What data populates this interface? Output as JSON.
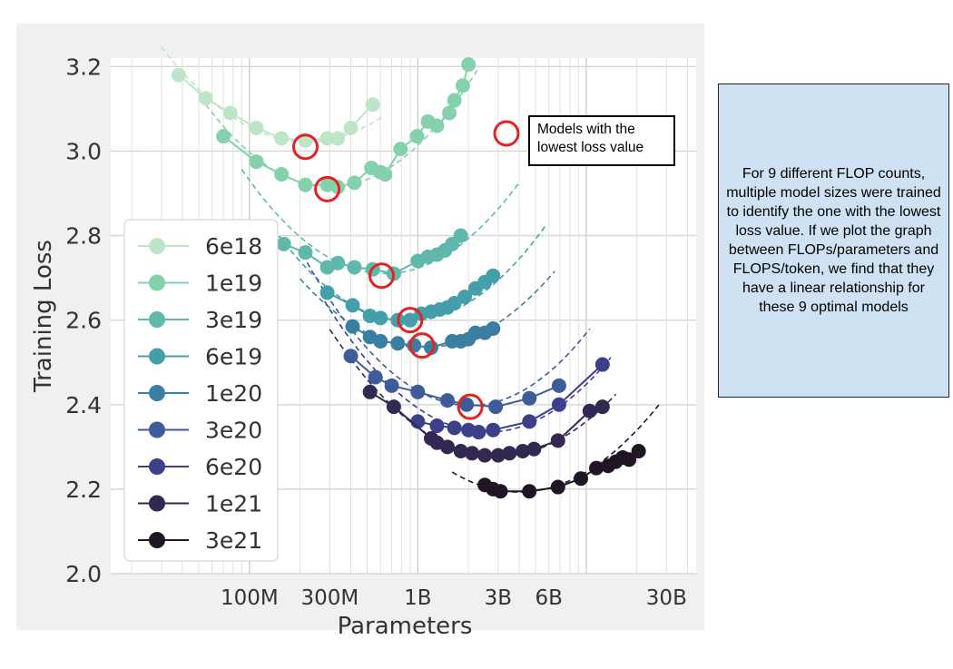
{
  "chart_data": {
    "type": "line",
    "xscale": "log",
    "xlabel": "Parameters",
    "ylabel": "Training Loss",
    "xlim": [
      15000000,
      45000000000
    ],
    "ylim": [
      2.0,
      3.22
    ],
    "xtick_labels": [
      {
        "value": 100000000,
        "label": "100M"
      },
      {
        "value": 300000000,
        "label": "300M"
      },
      {
        "value": 1000000000,
        "label": "1B"
      },
      {
        "value": 3000000000,
        "label": "3B"
      },
      {
        "value": 6000000000,
        "label": "6B"
      },
      {
        "value": 30000000000,
        "label": "30B"
      }
    ],
    "yticks": [
      2.0,
      2.2,
      2.4,
      2.6,
      2.8,
      3.0,
      3.2
    ],
    "grid": true,
    "legend_position": "left",
    "series": [
      {
        "name": "6e18",
        "color": "#bfe5c9",
        "x": [
          38000000,
          55000000,
          77000000,
          110000000,
          155000000,
          215000000,
          290000000,
          335000000,
          400000000,
          540000000
        ],
        "y": [
          3.18,
          3.125,
          3.09,
          3.055,
          3.03,
          3.025,
          3.03,
          3.03,
          3.055,
          3.11
        ],
        "fit": {
          "a": 3.022,
          "b": 0.3,
          "x0": 220000000,
          "x_start": 30000000,
          "x_end": 620000000
        }
      },
      {
        "name": "1e19",
        "color": "#86d1ad",
        "x": [
          70000000,
          110000000,
          155000000,
          215000000,
          290000000,
          335000000,
          420000000,
          530000000,
          600000000,
          640000000,
          790000000,
          990000000,
          1150000000,
          1300000000,
          1540000000,
          1650000000,
          1850000000,
          2000000000
        ],
        "y": [
          3.035,
          2.975,
          2.945,
          2.92,
          2.92,
          2.915,
          2.925,
          2.96,
          2.95,
          2.945,
          3.005,
          3.035,
          3.07,
          3.06,
          3.09,
          3.12,
          3.155,
          3.205
        ],
        "fit": {
          "a": 2.915,
          "b": 0.36,
          "x0": 300000000,
          "x_start": 55000000,
          "x_end": 2300000000
        }
      },
      {
        "name": "3e19",
        "color": "#60b8ac",
        "x": [
          160000000,
          215000000,
          290000000,
          335000000,
          420000000,
          540000000,
          720000000,
          1000000000,
          1150000000,
          1300000000,
          1450000000,
          1600000000,
          1800000000
        ],
        "y": [
          2.78,
          2.76,
          2.725,
          2.735,
          2.725,
          2.72,
          2.71,
          2.74,
          2.75,
          2.755,
          2.765,
          2.78,
          2.8
        ],
        "fit": {
          "a": 2.71,
          "b": 0.34,
          "x0": 640000000,
          "x_start": 90000000,
          "x_end": 4000000000
        }
      },
      {
        "name": "6e19",
        "color": "#449fa8",
        "x": [
          290000000,
          410000000,
          520000000,
          600000000,
          760000000,
          900000000,
          1050000000,
          1200000000,
          1350000000,
          1500000000,
          1650000000,
          1900000000,
          2200000000,
          2500000000,
          2800000000
        ],
        "y": [
          2.665,
          2.635,
          2.61,
          2.605,
          2.6,
          2.6,
          2.615,
          2.62,
          2.625,
          2.63,
          2.64,
          2.655,
          2.675,
          2.69,
          2.705
        ],
        "fit": {
          "a": 2.598,
          "b": 0.34,
          "x0": 880000000,
          "x_start": 150000000,
          "x_end": 5700000000
        }
      },
      {
        "name": "1e20",
        "color": "#3a7ea1",
        "x": [
          410000000,
          520000000,
          600000000,
          760000000,
          950000000,
          1200000000,
          1600000000,
          1800000000,
          2000000000,
          2200000000,
          2500000000,
          2800000000
        ],
        "y": [
          2.585,
          2.56,
          2.55,
          2.545,
          2.54,
          2.535,
          2.55,
          2.55,
          2.555,
          2.57,
          2.57,
          2.58
        ],
        "fit": {
          "a": 2.535,
          "b": 0.3,
          "x0": 1090000000,
          "x_start": 200000000,
          "x_end": 6500000000
        }
      },
      {
        "name": "3e20",
        "color": "#3e5b9a",
        "x": [
          400000000,
          560000000,
          700000000,
          1000000000,
          1500000000,
          1950000000,
          2900000000,
          4600000000,
          6900000000
        ],
        "y": [
          2.515,
          2.465,
          2.445,
          2.43,
          2.41,
          2.4,
          2.395,
          2.415,
          2.445
        ],
        "fit": {
          "a": 2.398,
          "b": 0.36,
          "x0": 2050000000,
          "x_start": 220000000,
          "x_end": 10500000000
        }
      },
      {
        "name": "6e20",
        "color": "#3c3f8a",
        "x": [
          1000000000,
          1300000000,
          1650000000,
          2000000000,
          2300000000,
          2800000000,
          4600000000,
          6900000000,
          12500000000
        ],
        "y": [
          2.36,
          2.35,
          2.345,
          2.34,
          2.335,
          2.34,
          2.36,
          2.4,
          2.495
        ],
        "fit": {
          "a": 2.335,
          "b": 0.33,
          "x0": 2600000000,
          "x_start": 280000000,
          "x_end": 14000000000
        }
      },
      {
        "name": "1e21",
        "color": "#332851",
        "x": [
          520000000,
          720000000,
          1200000000,
          1300000000,
          1500000000,
          1800000000,
          2100000000,
          2500000000,
          3000000000,
          3500000000,
          4200000000,
          4900000000,
          6800000000,
          10500000000,
          12500000000
        ],
        "y": [
          2.43,
          2.395,
          2.32,
          2.31,
          2.3,
          2.29,
          2.285,
          2.28,
          2.28,
          2.285,
          2.29,
          2.295,
          2.315,
          2.385,
          2.395
        ],
        "fit": {
          "a": 2.278,
          "b": 0.3,
          "x0": 3000000000,
          "x_start": 300000000,
          "x_end": 15000000000
        }
      },
      {
        "name": "3e21",
        "color": "#1f1524",
        "x": [
          2500000000,
          2800000000,
          3100000000,
          4600000000,
          6800000000,
          9300000000,
          11500000000,
          13500000000,
          15000000000,
          16500000000,
          18000000000,
          20500000000
        ],
        "y": [
          2.21,
          2.2,
          2.195,
          2.195,
          2.205,
          2.225,
          2.25,
          2.255,
          2.265,
          2.275,
          2.27,
          2.29
        ],
        "fit": {
          "a": 2.193,
          "b": 0.3,
          "x0": 4000000000,
          "x_start": 1600000000,
          "x_end": 27000000000
        }
      }
    ],
    "highlighted_optima": [
      {
        "x": 215000000,
        "y": 3.01
      },
      {
        "x": 290000000,
        "y": 2.91
      },
      {
        "x": 610000000,
        "y": 2.705
      },
      {
        "x": 900000000,
        "y": 2.6
      },
      {
        "x": 1060000000,
        "y": 2.54
      },
      {
        "x": 2050000000,
        "y": 2.395
      }
    ],
    "highlight_color": "#e32222",
    "circle_annotation": {
      "text": "Models with the lowest loss value"
    }
  },
  "note": {
    "text": "For 9 different FLOP counts, multiple model sizes were trained to identify the one with the lowest loss value. If we plot the graph between FLOPs/parameters and FLOPS/token, we find that they have a linear relationship for these 9 optimal models"
  }
}
